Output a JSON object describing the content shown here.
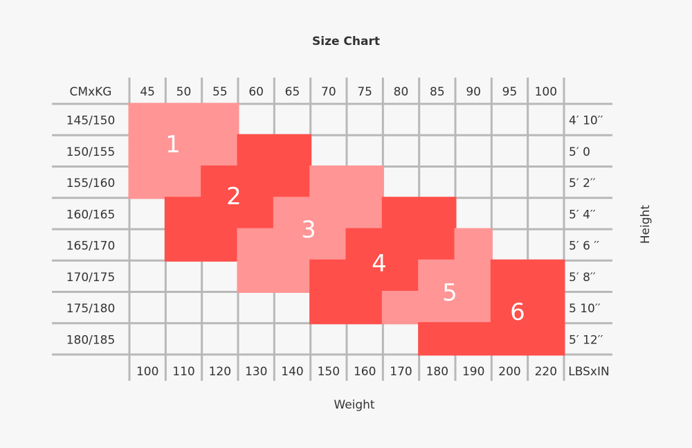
{
  "chart_data": {
    "type": "table",
    "title": "Size Chart",
    "xlabel": "Weight",
    "ylabel": "Height",
    "corner_label_top": "CMxKG",
    "corner_label_bottom": "LBSxIN",
    "kg_columns": [
      "45",
      "50",
      "55",
      "60",
      "65",
      "70",
      "75",
      "80",
      "85",
      "90",
      "95",
      "100"
    ],
    "lbs_columns": [
      "100",
      "110",
      "120",
      "130",
      "140",
      "150",
      "160",
      "170",
      "180",
      "190",
      "200",
      "220"
    ],
    "cm_rows": [
      "145/150",
      "150/155",
      "155/160",
      "160/165",
      "165/170",
      "170/175",
      "175/180",
      "180/185"
    ],
    "in_rows": [
      "4′ 10′′",
      "5′ 0",
      "5′ 2′′",
      "5′ 4′′",
      "5′ 6 ′′",
      "5′ 8′′",
      "5 10′′",
      "5′ 12′′"
    ],
    "colors": {
      "light": "#ff9595",
      "dark": "#ff4f4a",
      "grid": "#b8b8b8"
    },
    "zones": [
      {
        "label": "1",
        "shade": "light",
        "spans": [
          [
            "145/150",
            "45",
            "55"
          ],
          [
            "150/155",
            "45",
            "55"
          ],
          [
            "155/160",
            "45",
            "50"
          ]
        ]
      },
      {
        "label": "2",
        "shade": "dark",
        "spans": [
          [
            "150/155",
            "60",
            "65"
          ],
          [
            "155/160",
            "55",
            "65"
          ],
          [
            "160/165",
            "50",
            "60"
          ],
          [
            "165/170",
            "50",
            "55"
          ]
        ]
      },
      {
        "label": "3",
        "shade": "light",
        "spans": [
          [
            "155/160",
            "70",
            "75"
          ],
          [
            "160/165",
            "65",
            "75"
          ],
          [
            "165/170",
            "60",
            "70"
          ],
          [
            "170/175",
            "60",
            "65"
          ]
        ]
      },
      {
        "label": "4",
        "shade": "dark",
        "spans": [
          [
            "160/165",
            "80",
            "85"
          ],
          [
            "165/170",
            "75",
            "85"
          ],
          [
            "170/175",
            "70",
            "80"
          ],
          [
            "175/180",
            "70",
            "75"
          ]
        ]
      },
      {
        "label": "5",
        "shade": "light",
        "spans": [
          [
            "165/170",
            "90",
            "90"
          ],
          [
            "170/175",
            "85",
            "90"
          ],
          [
            "175/180",
            "80",
            "90"
          ]
        ]
      },
      {
        "label": "6",
        "shade": "dark",
        "spans": [
          [
            "170/175",
            "95",
            "100"
          ],
          [
            "175/180",
            "95",
            "100"
          ],
          [
            "180/185",
            "85",
            "100"
          ]
        ]
      }
    ]
  }
}
